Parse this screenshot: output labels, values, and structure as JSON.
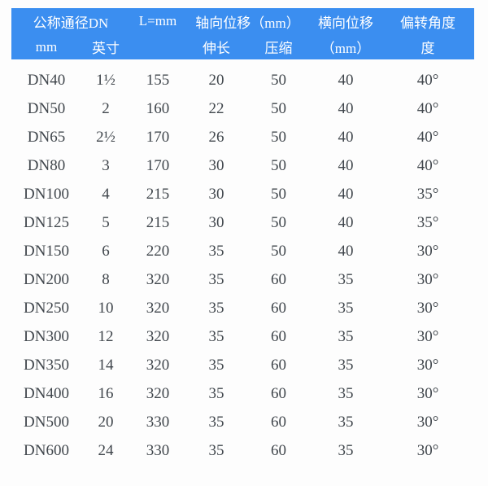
{
  "colors": {
    "header_bg": "#3b8ef0",
    "header_text": "#ffffff",
    "body_text": "#40464c",
    "page_bg": "#fdfdfd"
  },
  "chart_data": {
    "type": "table",
    "header": {
      "nominal_diameter": "公称通径DN",
      "unit_mm": "mm",
      "unit_inch": "英寸",
      "length": "L=mm",
      "axial_displacement": "轴向位移（mm）",
      "elongation": "伸长",
      "compression": "压缩",
      "lateral_displacement": "横向位移",
      "lateral_unit": "（mm）",
      "deflection_angle": "偏转角度",
      "angle_unit": "度"
    },
    "columns": [
      "公称通径DN mm",
      "公称通径DN 英寸",
      "L=mm",
      "轴向位移 伸长（mm）",
      "轴向位移 压缩（mm）",
      "横向位移（mm）",
      "偏转角度 度"
    ],
    "rows": [
      [
        "DN40",
        "1½",
        "155",
        "20",
        "50",
        "40",
        "40°"
      ],
      [
        "DN50",
        "2",
        "160",
        "22",
        "50",
        "40",
        "40°"
      ],
      [
        "DN65",
        "2½",
        "170",
        "26",
        "50",
        "40",
        "40°"
      ],
      [
        "DN80",
        "3",
        "170",
        "30",
        "50",
        "40",
        "40°"
      ],
      [
        "DN100",
        "4",
        "215",
        "30",
        "50",
        "40",
        "35°"
      ],
      [
        "DN125",
        "5",
        "215",
        "30",
        "50",
        "40",
        "35°"
      ],
      [
        "DN150",
        "6",
        "220",
        "35",
        "50",
        "40",
        "30°"
      ],
      [
        "DN200",
        "8",
        "320",
        "35",
        "60",
        "35",
        "30°"
      ],
      [
        "DN250",
        "10",
        "320",
        "35",
        "60",
        "35",
        "30°"
      ],
      [
        "DN300",
        "12",
        "320",
        "35",
        "60",
        "35",
        "30°"
      ],
      [
        "DN350",
        "14",
        "320",
        "35",
        "60",
        "35",
        "30°"
      ],
      [
        "DN400",
        "16",
        "320",
        "35",
        "60",
        "35",
        "30°"
      ],
      [
        "DN500",
        "20",
        "330",
        "35",
        "60",
        "35",
        "30°"
      ],
      [
        "DN600",
        "24",
        "330",
        "35",
        "60",
        "35",
        "30°"
      ]
    ]
  }
}
